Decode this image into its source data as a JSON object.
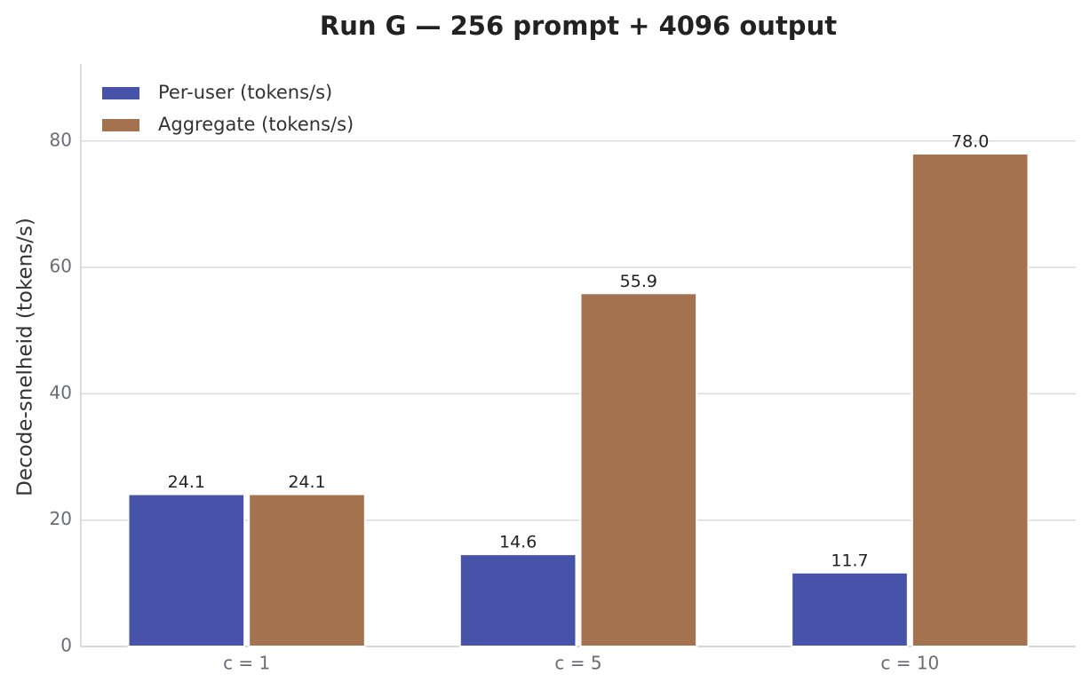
{
  "chart_data": {
    "type": "bar",
    "title": "Run G — 256 prompt + 4096 output",
    "y_label": "Decode-snelheid (tokens/s)",
    "categories": [
      "c = 1",
      "c = 5",
      "c = 10"
    ],
    "series": [
      {
        "name": "Per-user (tokens/s)",
        "color": "#4753a8",
        "values": [
          24.1,
          14.6,
          11.7
        ],
        "value_labels": [
          "24.1",
          "14.6",
          "11.7"
        ]
      },
      {
        "name": "Aggregate (tokens/s)",
        "color": "#a57250",
        "values": [
          24.1,
          55.9,
          78.0
        ],
        "value_labels": [
          "24.1",
          "55.9",
          "78.0"
        ]
      }
    ],
    "ylim": [
      0,
      92.2
    ],
    "yticks": [
      0,
      20,
      40,
      60,
      80
    ],
    "grid": true,
    "legend": "upper left"
  }
}
